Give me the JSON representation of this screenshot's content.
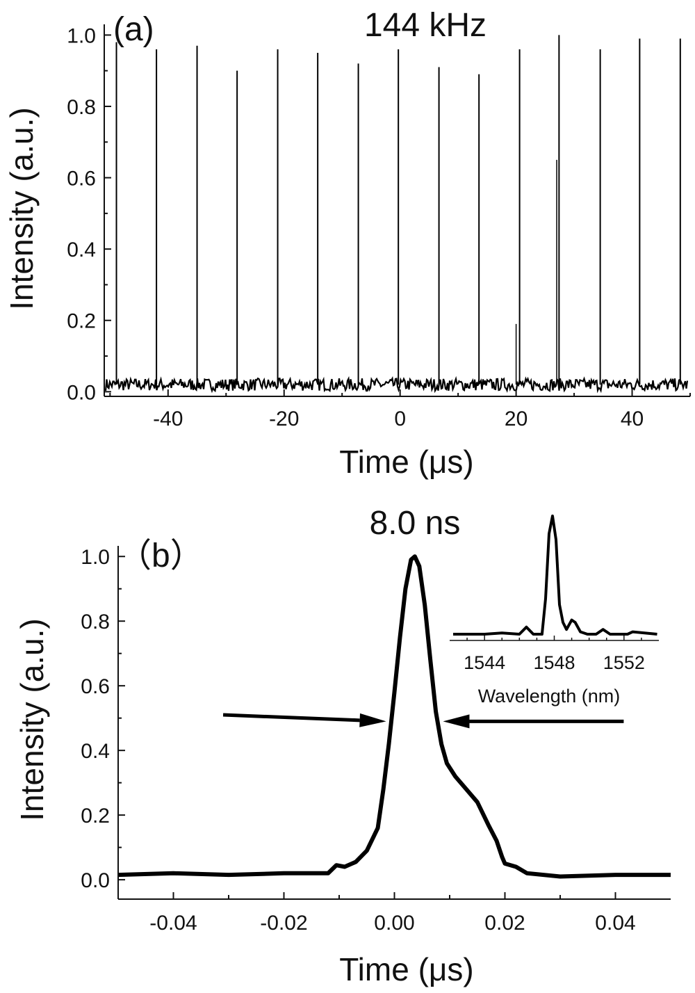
{
  "chart_data": [
    {
      "type": "line",
      "panel_label": "(a)",
      "annotation": "144 kHz",
      "xlabel": "Time  (μs)",
      "ylabel": "Intensity (a.u.)",
      "xlim": [
        -51,
        50
      ],
      "ylim": [
        -0.013,
        1.03
      ],
      "xticks": [
        -40,
        -20,
        0,
        20,
        40
      ],
      "xtick_labels": [
        "-40",
        "-20",
        "0",
        "20",
        "40"
      ],
      "yticks": [
        0.0,
        0.2,
        0.4,
        0.6,
        0.8,
        1.0
      ],
      "ytick_labels": [
        "0.0",
        "0.2",
        "0.4",
        "0.6",
        "0.8",
        "1.0"
      ],
      "grid": false,
      "baseline_level": 0.02,
      "pulses": {
        "x": [
          -48.9,
          -42.0,
          -35.0,
          -28.1,
          -21.1,
          -14.2,
          -7.2,
          -0.3,
          6.7,
          13.6,
          20.6,
          27.4,
          34.5,
          41.3,
          48.3
        ],
        "y": [
          0.98,
          0.96,
          0.97,
          0.9,
          0.96,
          0.95,
          0.92,
          0.96,
          0.91,
          0.89,
          0.96,
          1.0,
          0.96,
          0.99,
          0.99
        ]
      },
      "partial_pulses": {
        "x": [
          20.0,
          27.0
        ],
        "y": [
          0.19,
          0.65
        ]
      }
    },
    {
      "type": "line",
      "panel_label": "（b）",
      "annotation": "8.0 ns",
      "xlabel": "Time  (μs)",
      "ylabel": "Intensity (a.u.)",
      "xlim": [
        -0.05,
        0.05
      ],
      "ylim": [
        -0.06,
        1.05
      ],
      "xticks": [
        -0.04,
        -0.02,
        0.0,
        0.02,
        0.04
      ],
      "xtick_labels": [
        "-0.04",
        "-0.02",
        "0.00",
        "0.02",
        "0.04"
      ],
      "yticks": [
        0.0,
        0.2,
        0.4,
        0.6,
        0.8,
        1.0
      ],
      "ytick_labels": [
        "0.0",
        "0.2",
        "0.4",
        "0.6",
        "0.8",
        "1.0"
      ],
      "grid": false,
      "series": [
        {
          "x": [
            -0.05,
            -0.04,
            -0.03,
            -0.02,
            -0.012,
            -0.0105,
            -0.009,
            -0.007,
            -0.005,
            -0.003,
            -0.002,
            -0.001,
            0.0,
            0.001,
            0.002,
            0.003,
            0.0037,
            0.0045,
            0.0055,
            0.0065,
            0.0075,
            0.0085,
            0.0095,
            0.011,
            0.013,
            0.015,
            0.017,
            0.0185,
            0.0195,
            0.02,
            0.022,
            0.024,
            0.03,
            0.04,
            0.05
          ],
          "y": [
            0.015,
            0.02,
            0.015,
            0.02,
            0.02,
            0.045,
            0.04,
            0.055,
            0.09,
            0.16,
            0.28,
            0.42,
            0.58,
            0.75,
            0.9,
            0.99,
            1.0,
            0.97,
            0.85,
            0.68,
            0.52,
            0.42,
            0.36,
            0.32,
            0.28,
            0.24,
            0.17,
            0.12,
            0.07,
            0.05,
            0.04,
            0.02,
            0.01,
            0.015,
            0.015
          ]
        }
      ],
      "fwhm_arrows": [
        {
          "from": [
            -0.031,
            0.51
          ],
          "to": [
            -0.0015,
            0.49
          ]
        },
        {
          "from": [
            0.0415,
            0.49
          ],
          "to": [
            0.0088,
            0.49
          ]
        }
      ],
      "inset": {
        "type": "line",
        "xlabel": "Wavelength (nm)",
        "xlim": [
          1542,
          1554
        ],
        "ylim": [
          0,
          1
        ],
        "xticks": [
          1543,
          1544,
          1545,
          1546,
          1547,
          1548,
          1549,
          1550,
          1551,
          1552,
          1553
        ],
        "xtick_labels": [
          "1544",
          "1548",
          "1552"
        ],
        "labeled_xticks": [
          1544,
          1548,
          1552
        ],
        "x": [
          1542.2,
          1544.0,
          1545.0,
          1546.0,
          1546.4,
          1546.8,
          1547.3,
          1547.5,
          1547.7,
          1547.9,
          1548.1,
          1548.3,
          1548.5,
          1548.7,
          1549.0,
          1549.2,
          1549.5,
          1549.9,
          1550.4,
          1550.8,
          1551.2,
          1552.2,
          1552.5,
          1553.9
        ],
        "y": [
          0.0,
          0.0,
          0.01,
          0.0,
          0.06,
          0.0,
          0.0,
          0.3,
          0.85,
          1.0,
          0.8,
          0.25,
          0.1,
          0.04,
          0.12,
          0.1,
          0.02,
          0.0,
          0.0,
          0.04,
          0.0,
          0.0,
          0.02,
          0.0
        ]
      }
    }
  ]
}
